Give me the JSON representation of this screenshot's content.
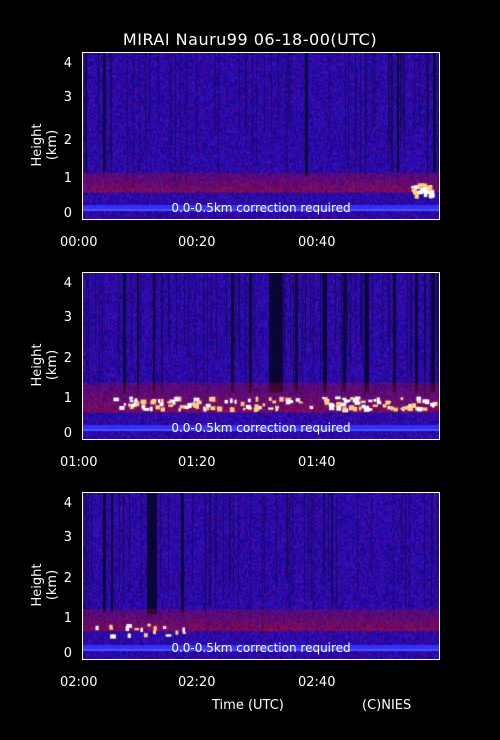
{
  "title": "MIRAI Nauru99 06-18-00(UTC)",
  "footer": {
    "xlabel": "Time (UTC)",
    "credit": "(C)NIES"
  },
  "colors": {
    "background": "#000000",
    "low": "#1a1aa0",
    "mid": "#c01010",
    "high": "#ffffff"
  },
  "chart_data": [
    {
      "type": "heatmap",
      "ylabel": "Height (km)",
      "ylim": [
        0,
        4.2
      ],
      "yticks": [
        "0",
        "1",
        "2",
        "3",
        "4"
      ],
      "xticks": [
        "00:00",
        "00:20",
        "00:40"
      ],
      "annotation": "0.0-0.5km correction required"
    },
    {
      "type": "heatmap",
      "ylabel": "Height (km)",
      "ylim": [
        0,
        4.2
      ],
      "yticks": [
        "0",
        "1",
        "2",
        "3",
        "4"
      ],
      "xticks": [
        "01:00",
        "01:20",
        "01:40"
      ],
      "annotation": "0.0-0.5km correction required"
    },
    {
      "type": "heatmap",
      "ylabel": "Height (km)",
      "ylim": [
        0,
        4.2
      ],
      "yticks": [
        "0",
        "1",
        "2",
        "3",
        "4"
      ],
      "xticks": [
        "02:00",
        "02:20",
        "02:40"
      ],
      "annotation": "0.0-0.5km correction required"
    }
  ]
}
